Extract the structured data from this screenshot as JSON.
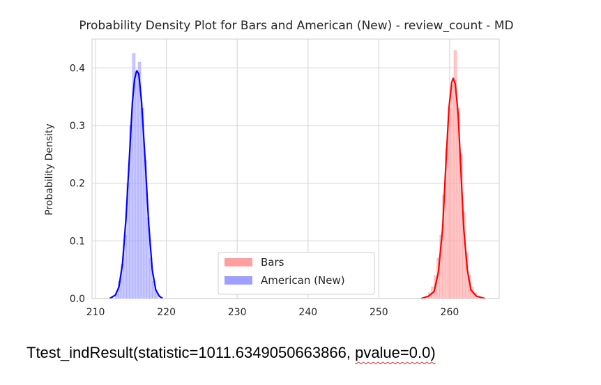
{
  "chart_data": {
    "type": "area",
    "title": "Probability Density Plot for Bars and American (New) - review_count - MD",
    "xlabel": "",
    "ylabel": "Probability Density",
    "xlim": [
      209.5,
      267
    ],
    "ylim": [
      0,
      0.45
    ],
    "xticks": [
      210,
      220,
      230,
      240,
      250,
      260
    ],
    "yticks": [
      0.0,
      0.1,
      0.2,
      0.3,
      0.4
    ],
    "grid": true,
    "legend_position": "lower-center",
    "series": [
      {
        "name": "Bars",
        "color": "#ff0000",
        "hist_color": "#ff9a9a",
        "kde": [
          [
            256.0,
            0.0
          ],
          [
            257.0,
            0.004
          ],
          [
            257.8,
            0.012
          ],
          [
            258.4,
            0.045
          ],
          [
            259.0,
            0.12
          ],
          [
            259.5,
            0.24
          ],
          [
            259.9,
            0.33
          ],
          [
            260.3,
            0.375
          ],
          [
            260.5,
            0.382
          ],
          [
            260.8,
            0.372
          ],
          [
            261.2,
            0.32
          ],
          [
            261.6,
            0.22
          ],
          [
            262.0,
            0.12
          ],
          [
            262.5,
            0.05
          ],
          [
            263.0,
            0.015
          ],
          [
            263.8,
            0.004
          ],
          [
            265.0,
            0.0
          ]
        ],
        "hist": [
          [
            257.2,
            0.01
          ],
          [
            257.6,
            0.02
          ],
          [
            258.0,
            0.04
          ],
          [
            258.4,
            0.07
          ],
          [
            258.8,
            0.11
          ],
          [
            259.2,
            0.18
          ],
          [
            259.6,
            0.26
          ],
          [
            260.0,
            0.33
          ],
          [
            260.4,
            0.37
          ],
          [
            260.8,
            0.43
          ],
          [
            261.2,
            0.33
          ],
          [
            261.6,
            0.25
          ],
          [
            262.0,
            0.15
          ],
          [
            262.4,
            0.08
          ],
          [
            262.8,
            0.04
          ],
          [
            263.2,
            0.02
          ],
          [
            263.6,
            0.01
          ]
        ]
      },
      {
        "name": "American (New)",
        "color": "#0000ff",
        "hist_color": "#9a9aff",
        "kde": [
          [
            212.0,
            0.0
          ],
          [
            212.8,
            0.006
          ],
          [
            213.3,
            0.02
          ],
          [
            213.8,
            0.06
          ],
          [
            214.3,
            0.14
          ],
          [
            214.8,
            0.25
          ],
          [
            215.2,
            0.34
          ],
          [
            215.5,
            0.38
          ],
          [
            215.8,
            0.395
          ],
          [
            216.1,
            0.39
          ],
          [
            216.5,
            0.34
          ],
          [
            217.0,
            0.24
          ],
          [
            217.5,
            0.13
          ],
          [
            218.0,
            0.05
          ],
          [
            218.5,
            0.015
          ],
          [
            219.0,
            0.004
          ],
          [
            219.5,
            0.0
          ]
        ],
        "hist": [
          [
            213.0,
            0.01
          ],
          [
            213.4,
            0.03
          ],
          [
            213.8,
            0.06
          ],
          [
            214.2,
            0.11
          ],
          [
            214.6,
            0.2
          ],
          [
            215.0,
            0.3
          ],
          [
            215.4,
            0.425
          ],
          [
            215.8,
            0.39
          ],
          [
            216.2,
            0.41
          ],
          [
            216.6,
            0.33
          ],
          [
            217.0,
            0.24
          ],
          [
            217.4,
            0.14
          ],
          [
            217.8,
            0.07
          ],
          [
            218.2,
            0.03
          ],
          [
            218.6,
            0.01
          ]
        ]
      }
    ]
  },
  "result_text": "Ttest_indResult(statistic=1011.6349050663866, ",
  "pvalue_text": "pvalue=0.0)"
}
